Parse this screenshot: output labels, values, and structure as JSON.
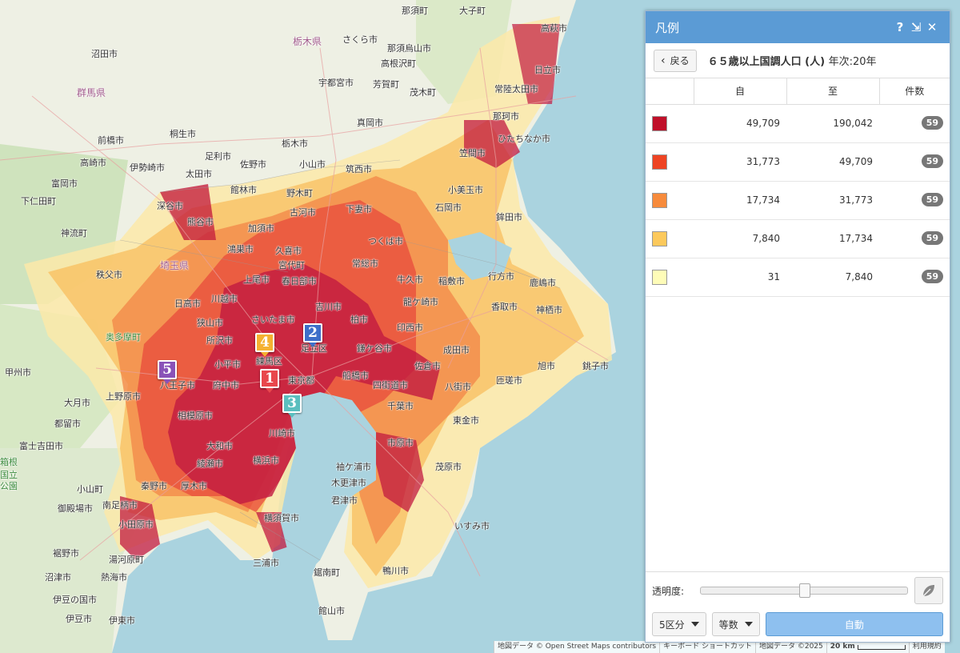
{
  "map": {
    "places": [
      {
        "name": "那須町"
      },
      {
        "name": "大子町"
      },
      {
        "name": "那須烏山市"
      },
      {
        "name": "高萩市"
      },
      {
        "name": "栃木県"
      },
      {
        "name": "さくら市"
      },
      {
        "name": "高根沢町"
      },
      {
        "name": "沼田市"
      },
      {
        "name": "宇都宮市"
      },
      {
        "name": "芳賀町"
      },
      {
        "name": "茂木町"
      },
      {
        "name": "常陸太田市"
      },
      {
        "name": "日立市"
      },
      {
        "name": "群馬県"
      },
      {
        "name": "那珂市"
      },
      {
        "name": "真岡市"
      },
      {
        "name": "前橋市"
      },
      {
        "name": "桐生市"
      },
      {
        "name": "栃木市"
      },
      {
        "name": "ひたちなか市"
      },
      {
        "name": "足利市"
      },
      {
        "name": "高崎市"
      },
      {
        "name": "伊勢崎市"
      },
      {
        "name": "太田市"
      },
      {
        "name": "佐野市"
      },
      {
        "name": "小山市"
      },
      {
        "name": "笠間市"
      },
      {
        "name": "筑西市"
      },
      {
        "name": "富岡市"
      },
      {
        "name": "館林市"
      },
      {
        "name": "野木町"
      },
      {
        "name": "小美玉市"
      },
      {
        "name": "鉾田市"
      },
      {
        "name": "下仁田町"
      },
      {
        "name": "深谷市"
      },
      {
        "name": "古河市"
      },
      {
        "name": "石岡市"
      },
      {
        "name": "熊谷市"
      },
      {
        "name": "加須市"
      },
      {
        "name": "下妻市"
      },
      {
        "name": "神流町"
      },
      {
        "name": "鴻巣市"
      },
      {
        "name": "久喜市"
      },
      {
        "name": "つくば市"
      },
      {
        "name": "埼玉県"
      },
      {
        "name": "宮代町"
      },
      {
        "name": "常総市"
      },
      {
        "name": "行方市"
      },
      {
        "name": "秩父市"
      },
      {
        "name": "上尾市"
      },
      {
        "name": "春日部市"
      },
      {
        "name": "牛久市"
      },
      {
        "name": "稲敷市"
      },
      {
        "name": "鹿嶋市"
      },
      {
        "name": "日高市"
      },
      {
        "name": "川越市"
      },
      {
        "name": "吉川市"
      },
      {
        "name": "龍ケ崎市"
      },
      {
        "name": "香取市"
      },
      {
        "name": "神栖市"
      },
      {
        "name": "狭山市"
      },
      {
        "name": "さいたま市"
      },
      {
        "name": "柏市"
      },
      {
        "name": "奥多摩町"
      },
      {
        "name": "所沢市"
      },
      {
        "name": "足立区"
      },
      {
        "name": "印西市"
      },
      {
        "name": "成田市"
      },
      {
        "name": "練馬区"
      },
      {
        "name": "鎌ケ谷市"
      },
      {
        "name": "旭市"
      },
      {
        "name": "甲州市"
      },
      {
        "name": "小平市"
      },
      {
        "name": "東京都"
      },
      {
        "name": "佐倉市"
      },
      {
        "name": "匝瑳市"
      },
      {
        "name": "八王子市"
      },
      {
        "name": "府中市"
      },
      {
        "name": "船橋市"
      },
      {
        "name": "八街市"
      },
      {
        "name": "銚子市"
      },
      {
        "name": "上野原市"
      },
      {
        "name": "四街道市"
      },
      {
        "name": "大月市"
      },
      {
        "name": "相模原市"
      },
      {
        "name": "千葉市"
      },
      {
        "name": "東金市"
      },
      {
        "name": "都留市"
      },
      {
        "name": "川崎市"
      },
      {
        "name": "富士吉田市"
      },
      {
        "name": "大和市"
      },
      {
        "name": "市原市"
      },
      {
        "name": "箱根"
      },
      {
        "name": "国立"
      },
      {
        "name": "公園"
      },
      {
        "name": "綾瀬市"
      },
      {
        "name": "横浜市"
      },
      {
        "name": "茂原市"
      },
      {
        "name": "袖ケ浦市"
      },
      {
        "name": "秦野市"
      },
      {
        "name": "厚木市"
      },
      {
        "name": "木更津市"
      },
      {
        "name": "小山町"
      },
      {
        "name": "君津市"
      },
      {
        "name": "御殿場市"
      },
      {
        "name": "南足柄市"
      },
      {
        "name": "いすみ市"
      },
      {
        "name": "小田原市"
      },
      {
        "name": "横須賀市"
      },
      {
        "name": "裾野市"
      },
      {
        "name": "湯河原町"
      },
      {
        "name": "三浦市"
      },
      {
        "name": "沼津市"
      },
      {
        "name": "熱海市"
      },
      {
        "name": "鋸南町"
      },
      {
        "name": "鴨川市"
      },
      {
        "name": "伊豆の国市"
      },
      {
        "name": "伊豆市"
      },
      {
        "name": "伊東市"
      },
      {
        "name": "館山市"
      }
    ],
    "markers": [
      {
        "label": "1",
        "color": "#e8474c"
      },
      {
        "label": "2",
        "color": "#3d6fc9"
      },
      {
        "label": "3",
        "color": "#5bbfbf"
      },
      {
        "label": "4",
        "color": "#f5b131"
      },
      {
        "label": "5",
        "color": "#8a52b8"
      }
    ],
    "colors": {
      "sea": "#aad3df",
      "land": "#f2efe9"
    }
  },
  "attribution": {
    "map_data": "地図データ © Open Street Maps contributors",
    "shortcuts": "キーボード ショートカット",
    "map_data2": "地図データ ©2025",
    "scale": "20 km",
    "terms": "利用規約"
  },
  "legend": {
    "title": "凡例",
    "help_icon": "?",
    "collapse_icon": "⇲",
    "close_icon": "✕",
    "back_label": "戻る",
    "indicator": "６５歳以上国調人口 (人)",
    "year": "年次:20年",
    "columns": {
      "from": "自",
      "to": "至",
      "count": "件数"
    },
    "classes": [
      {
        "color": "#c0102a",
        "from": "49,709",
        "to": "190,042",
        "count": "59"
      },
      {
        "color": "#ee4423",
        "from": "31,773",
        "to": "49,709",
        "count": "59"
      },
      {
        "color": "#f78b3c",
        "from": "17,734",
        "to": "31,773",
        "count": "59"
      },
      {
        "color": "#fcc95c",
        "from": "7,840",
        "to": "17,734",
        "count": "59"
      },
      {
        "color": "#fefcb8",
        "from": "31",
        "to": "7,840",
        "count": "59"
      }
    ],
    "opacity_label": "透明度:",
    "opacity_value": 0.5,
    "divisions": "5区分",
    "method": "等数",
    "auto_label": "自動"
  }
}
